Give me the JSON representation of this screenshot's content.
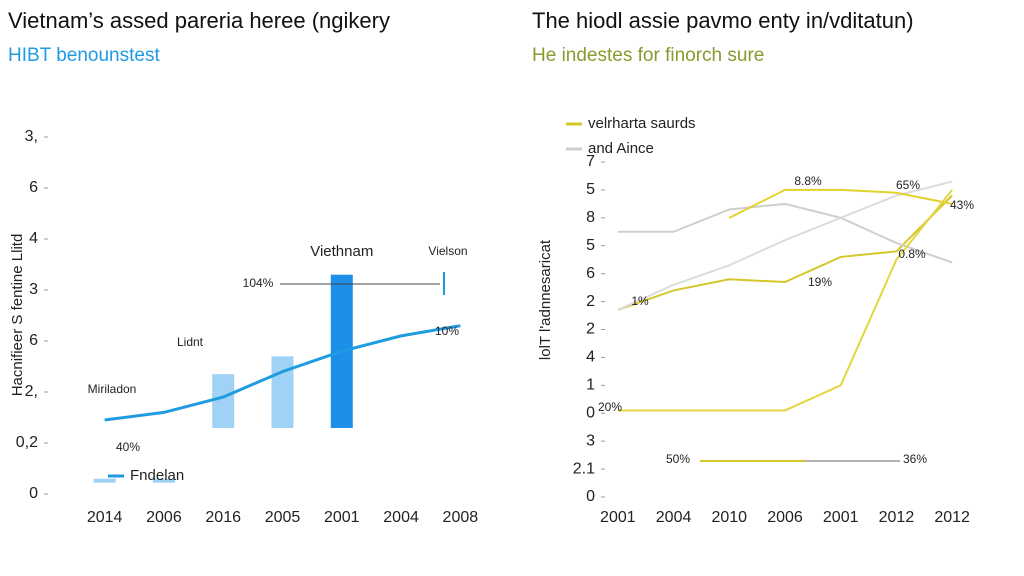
{
  "chart_data": [
    {
      "type": "bar-line",
      "title": "Vietnam’s assed pareria heree (ngikery",
      "subtitle": "HIBT benounstest",
      "y_label": "Hacnifieer S fentine Llitd",
      "categories": [
        "2014",
        "2006",
        "2016",
        "2005",
        "2001",
        "2004",
        "2008"
      ],
      "ylim": [
        0,
        7
      ],
      "yticks": [
        0,
        {
          "value": 1,
          "label": "0,2"
        },
        {
          "value": 2,
          "label": "2,"
        },
        {
          "value": 3,
          "label": "6"
        },
        {
          "value": 4,
          "label": "3"
        },
        {
          "value": 5,
          "label": "4"
        },
        {
          "value": 6,
          "label": "6"
        },
        {
          "value": 7,
          "label": "3,"
        }
      ],
      "series": [
        {
          "name": "Viethnam",
          "kind": "bar",
          "color": "#9fd2f4",
          "highlight_color": "#1e8fe8",
          "values": [
            0.3,
            0.3,
            2.35,
            2.7,
            4.3,
            null,
            null
          ]
        },
        {
          "name": "Fndelan",
          "kind": "line",
          "color": "#1f9be0",
          "values": [
            1.45,
            1.6,
            1.9,
            2.4,
            2.8,
            3.1,
            3.3
          ]
        }
      ],
      "annotations": [
        "Vielson",
        "Lidnt",
        "Miriladon",
        "104%",
        "10%",
        "40%"
      ]
    },
    {
      "type": "line",
      "title": "The hiodl assie pavmo enty in/vditatun)",
      "subtitle": "He indestes for finorch sure",
      "y_label": "lolT l'adnnesaricat",
      "categories": [
        "2001",
        "2004",
        "2010",
        "2006",
        "2001",
        "2012",
        "2012"
      ],
      "ylim": [
        0,
        12
      ],
      "yticks": [
        0,
        {
          "value": 1,
          "label": "2.1"
        },
        {
          "value": 2,
          "label": "3"
        },
        {
          "value": 3,
          "label": "0"
        },
        {
          "value": 4,
          "label": "1"
        },
        {
          "value": 5,
          "label": "4"
        },
        {
          "value": 6,
          "label": "2"
        },
        {
          "value": 7,
          "label": "2"
        },
        {
          "value": 8,
          "label": "6"
        },
        {
          "value": 9,
          "label": "5"
        },
        {
          "value": 10,
          "label": "8"
        },
        {
          "value": 11,
          "label": "5"
        },
        {
          "value": 12,
          "label": "7"
        }
      ],
      "series": [
        {
          "name": "velrharta saurds",
          "color": "#d6c62a",
          "values": [
            6.7,
            7.4,
            7.8,
            7.7,
            8.6,
            8.8,
            10.8
          ]
        },
        {
          "name": "and Aince",
          "color": "#cfcfcf",
          "values": [
            9.5,
            9.5,
            10.3,
            10.5,
            10.0,
            9.1,
            8.4
          ]
        },
        {
          "color": "#dcdcdc",
          "values": [
            6.7,
            7.6,
            8.3,
            9.2,
            10.0,
            10.8,
            11.3
          ]
        },
        {
          "color": "#e2d22e",
          "values": [
            null,
            null,
            10.0,
            11.0,
            11.0,
            10.9,
            10.5
          ]
        },
        {
          "color": "#e4d640",
          "values": [
            3.1,
            3.1,
            3.1,
            3.1,
            4.0,
            8.5,
            11.0
          ]
        }
      ],
      "annotations": [
        "8.8%",
        "65%",
        "43%",
        "0.8%",
        "1%",
        "19%",
        "20%",
        "50%",
        "36%"
      ]
    }
  ]
}
